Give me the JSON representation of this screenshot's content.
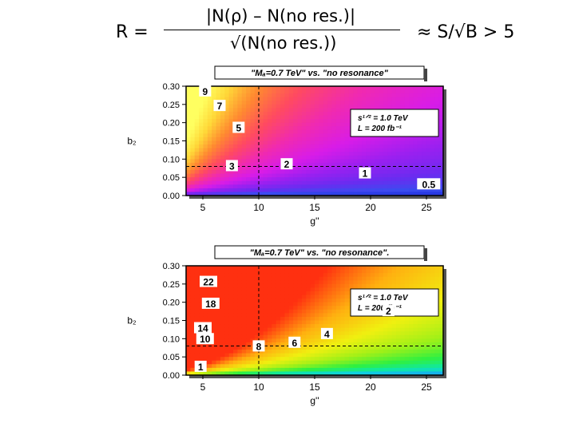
{
  "formula": {
    "lhs": "R =",
    "numerator": "|N(ρ) – N(no res.)|",
    "denominator": "√(N(no res.))",
    "rhs": "≈ S/√B  >  5"
  },
  "chart_data": [
    {
      "type": "heatmap",
      "title": "\"Mₐ=0.7 TeV\" vs. \"no resonance\"",
      "info_lines": [
        "s¹ᐟ² = 1.0 TeV",
        "L = 200 fb⁻¹"
      ],
      "xlabel": "g''",
      "ylabel": "b₂",
      "xlim": [
        3.5,
        26.5
      ],
      "ylim": [
        0,
        0.3
      ],
      "xticks": [
        5,
        10,
        15,
        20,
        25
      ],
      "xtick_labels": [
        "5",
        "10",
        "15",
        "20",
        "25"
      ],
      "yticks": [
        0,
        0.05,
        0.1,
        0.15,
        0.2,
        0.25,
        0.3
      ],
      "ytick_labels": [
        "0.00",
        "0.05",
        "0.10",
        "0.15",
        "0.20",
        "0.25",
        "0.30"
      ],
      "contour_levels": [
        0.5,
        1,
        2,
        3,
        5,
        7,
        9
      ],
      "contour_labels": [
        {
          "text": "9",
          "x": 5.2,
          "y": 0.285
        },
        {
          "text": "7",
          "x": 6.5,
          "y": 0.245
        },
        {
          "text": "5",
          "x": 8.2,
          "y": 0.185
        },
        {
          "text": "3",
          "x": 7.6,
          "y": 0.08
        },
        {
          "text": "2",
          "x": 12.5,
          "y": 0.085
        },
        {
          "text": "1",
          "x": 19.5,
          "y": 0.06
        },
        {
          "text": "0.5",
          "x": 25.2,
          "y": 0.03
        }
      ],
      "reference_lines": {
        "x": 10,
        "y": 0.08
      },
      "colormap": [
        "#1a2ad8",
        "#3b4cf0",
        "#6a2cf0",
        "#9a20f0",
        "#d81ce8",
        "#f02ab0",
        "#ff4a60",
        "#ff8a30",
        "#ffd838",
        "#ffff60"
      ]
    },
    {
      "type": "heatmap",
      "title": "\"Mₐ=0.7 TeV\" vs. \"no resonance\".",
      "info_lines": [
        "s¹ᐟ² = 1.0 TeV",
        "L = 200 fb⁻¹"
      ],
      "xlabel": "g''",
      "ylabel": "b₂",
      "xlim": [
        3.5,
        26.5
      ],
      "ylim": [
        0,
        0.3
      ],
      "xticks": [
        5,
        10,
        15,
        20,
        25
      ],
      "xtick_labels": [
        "5",
        "10",
        "15",
        "20",
        "25"
      ],
      "yticks": [
        0,
        0.05,
        0.1,
        0.15,
        0.2,
        0.25,
        0.3
      ],
      "ytick_labels": [
        "0.00",
        "0.05",
        "0.10",
        "0.15",
        "0.20",
        "0.25",
        "0.30"
      ],
      "contour_levels": [
        1,
        2,
        4,
        6,
        8,
        10,
        14,
        18,
        22
      ],
      "contour_labels": [
        {
          "text": "22",
          "x": 5.5,
          "y": 0.255
        },
        {
          "text": "18",
          "x": 5.7,
          "y": 0.195
        },
        {
          "text": "14",
          "x": 5.0,
          "y": 0.128
        },
        {
          "text": "10",
          "x": 5.2,
          "y": 0.098
        },
        {
          "text": "8",
          "x": 10.0,
          "y": 0.078
        },
        {
          "text": "6",
          "x": 13.2,
          "y": 0.088
        },
        {
          "text": "4",
          "x": 16.1,
          "y": 0.112
        },
        {
          "text": "2",
          "x": 21.6,
          "y": 0.175
        },
        {
          "text": "1",
          "x": 4.8,
          "y": 0.022
        }
      ],
      "reference_lines": {
        "x": 10,
        "y": 0.08
      },
      "colormap": [
        "#1a3ae0",
        "#2a60f0",
        "#1aa0f0",
        "#10d0e0",
        "#10e8a0",
        "#30f040",
        "#a0f018",
        "#f0f010",
        "#ffb010",
        "#ff3010"
      ]
    }
  ]
}
